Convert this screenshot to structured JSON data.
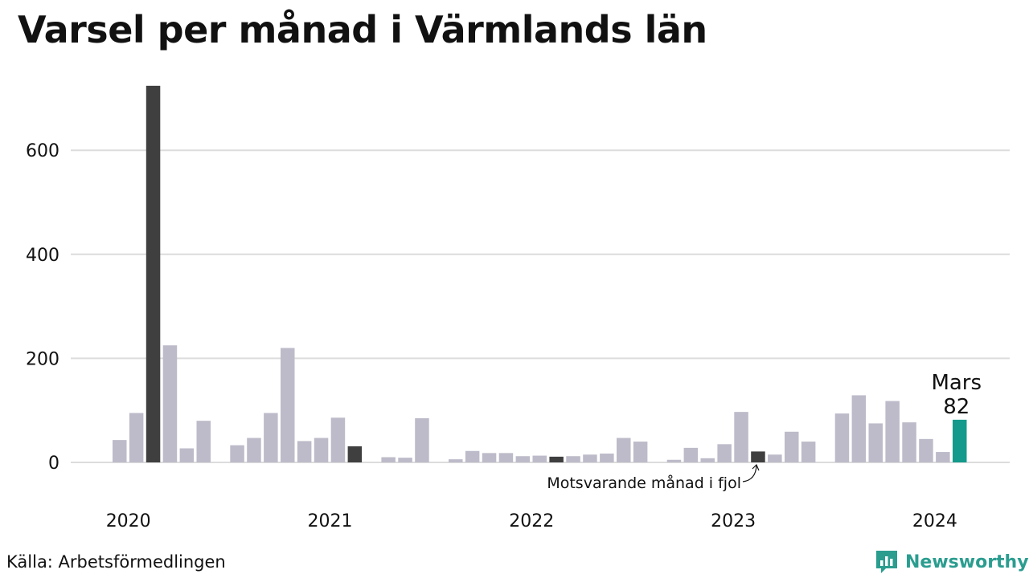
{
  "title": "Varsel per månad i Värmlands län",
  "source": "Källa: Arbetsförmedlingen",
  "brand": {
    "name": "Newsworthy",
    "icon": "newsworthy-logo-icon"
  },
  "colors": {
    "bar": "#bdbbc9",
    "same_month": "#3f3f3f",
    "current": "#139a8c",
    "grid": "#dcdcdc",
    "brand": "#2a9d8f"
  },
  "annotations": {
    "current_month_label": "Mars",
    "current_month_value": "82",
    "last_year_label": "Motsvarande månad i fjol"
  },
  "chart_data": {
    "type": "bar",
    "title": "Varsel per månad i Värmlands län",
    "xlabel": "",
    "ylabel": "",
    "ylim": [
      0,
      725
    ],
    "y_ticks": [
      0,
      200,
      400,
      600
    ],
    "x_tick_labels": [
      "2020",
      "2021",
      "2022",
      "2023",
      "2024"
    ],
    "grid": true,
    "categories": [
      "2020-01",
      "2020-02",
      "2020-03",
      "2020-04",
      "2020-05",
      "2020-06",
      "2020-07",
      "2020-08",
      "2020-09",
      "2020-10",
      "2020-11",
      "2020-12",
      "2021-01",
      "2021-02",
      "2021-03",
      "2021-04",
      "2021-05",
      "2021-06",
      "2021-07",
      "2021-08",
      "2021-09",
      "2021-10",
      "2021-11",
      "2021-12",
      "2022-01",
      "2022-02",
      "2022-03",
      "2022-04",
      "2022-05",
      "2022-06",
      "2022-07",
      "2022-08",
      "2022-09",
      "2022-10",
      "2022-11",
      "2022-12",
      "2023-01",
      "2023-02",
      "2023-03",
      "2023-04",
      "2023-05",
      "2023-06",
      "2023-07",
      "2023-08",
      "2023-09",
      "2023-10",
      "2023-11",
      "2023-12",
      "2024-01",
      "2024-02",
      "2024-03"
    ],
    "values": [
      43,
      95,
      724,
      225,
      27,
      80,
      0,
      33,
      47,
      95,
      220,
      41,
      47,
      86,
      31,
      0,
      10,
      9,
      85,
      0,
      6,
      22,
      18,
      18,
      12,
      13,
      11,
      12,
      15,
      17,
      47,
      40,
      0,
      5,
      28,
      8,
      35,
      97,
      21,
      15,
      59,
      40,
      0,
      94,
      129,
      75,
      118,
      77,
      45,
      20,
      82
    ],
    "highlight_same_month": [
      "2020-03",
      "2021-03",
      "2022-03",
      "2023-03"
    ],
    "highlight_current": "2024-03"
  }
}
